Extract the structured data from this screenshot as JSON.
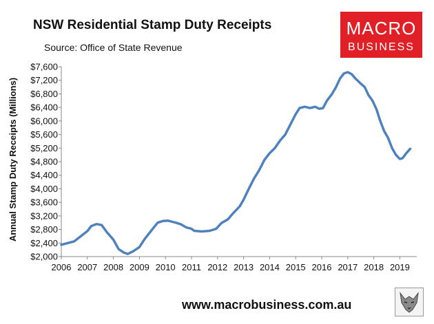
{
  "header": {
    "title": "NSW Residential Stamp Duty Receipts",
    "source": "Source: Office of State Revenue"
  },
  "logo": {
    "line1": "MACRO",
    "line2": "BUSINESS"
  },
  "footer": {
    "url": "www.macrobusiness.com.au"
  },
  "icons": {
    "badge": "wolf-badge-icon"
  },
  "colors": {
    "series": "#4f81bd",
    "logo_bg": "#e11f26"
  },
  "chart_data": {
    "type": "line",
    "title": "NSW Residential Stamp Duty Receipts",
    "ylabel": "Annual Stamp Duty Receipts (Millions)",
    "xlabel": "",
    "ylim": [
      2000,
      7600
    ],
    "xlim": [
      2006,
      2019.4
    ],
    "grid": false,
    "legend": "none",
    "y_ticks": [
      "$2,000",
      "$2,400",
      "$2,800",
      "$3,200",
      "$3,600",
      "$4,000",
      "$4,400",
      "$4,800",
      "$5,200",
      "$5,600",
      "$6,000",
      "$6,400",
      "$6,800",
      "$7,200",
      "$7,600"
    ],
    "y_tick_values": [
      2000,
      2400,
      2800,
      3200,
      3600,
      4000,
      4400,
      4800,
      5200,
      5600,
      6000,
      6400,
      6800,
      7200,
      7600
    ],
    "x_ticks": [
      "2006",
      "2007",
      "2008",
      "2009",
      "2010",
      "2011",
      "2012",
      "2013",
      "2014",
      "2015",
      "2016",
      "2017",
      "2018",
      "2019"
    ],
    "x_tick_values": [
      2006,
      2007,
      2008,
      2009,
      2010,
      2011,
      2012,
      2013,
      2014,
      2015,
      2016,
      2017,
      2018,
      2019
    ],
    "series": [
      {
        "values": [
          [
            2006.0,
            2350
          ],
          [
            2006.25,
            2400
          ],
          [
            2006.5,
            2450
          ],
          [
            2006.75,
            2600
          ],
          [
            2007.0,
            2750
          ],
          [
            2007.15,
            2900
          ],
          [
            2007.35,
            2960
          ],
          [
            2007.55,
            2930
          ],
          [
            2007.75,
            2720
          ],
          [
            2008.0,
            2500
          ],
          [
            2008.2,
            2220
          ],
          [
            2008.4,
            2120
          ],
          [
            2008.55,
            2080
          ],
          [
            2008.75,
            2150
          ],
          [
            2009.0,
            2280
          ],
          [
            2009.2,
            2520
          ],
          [
            2009.45,
            2760
          ],
          [
            2009.7,
            3000
          ],
          [
            2009.9,
            3050
          ],
          [
            2010.1,
            3060
          ],
          [
            2010.4,
            3000
          ],
          [
            2010.6,
            2950
          ],
          [
            2010.8,
            2860
          ],
          [
            2011.0,
            2820
          ],
          [
            2011.1,
            2760
          ],
          [
            2011.4,
            2740
          ],
          [
            2011.7,
            2760
          ],
          [
            2011.95,
            2820
          ],
          [
            2012.15,
            2990
          ],
          [
            2012.4,
            3100
          ],
          [
            2012.6,
            3280
          ],
          [
            2012.85,
            3480
          ],
          [
            2013.0,
            3680
          ],
          [
            2013.2,
            4000
          ],
          [
            2013.4,
            4300
          ],
          [
            2013.6,
            4550
          ],
          [
            2013.8,
            4850
          ],
          [
            2014.0,
            5050
          ],
          [
            2014.2,
            5200
          ],
          [
            2014.4,
            5420
          ],
          [
            2014.6,
            5600
          ],
          [
            2014.8,
            5900
          ],
          [
            2015.0,
            6200
          ],
          [
            2015.15,
            6380
          ],
          [
            2015.35,
            6420
          ],
          [
            2015.55,
            6380
          ],
          [
            2015.75,
            6420
          ],
          [
            2015.9,
            6360
          ],
          [
            2016.05,
            6380
          ],
          [
            2016.2,
            6600
          ],
          [
            2016.4,
            6800
          ],
          [
            2016.55,
            7000
          ],
          [
            2016.7,
            7250
          ],
          [
            2016.85,
            7400
          ],
          [
            2017.0,
            7440
          ],
          [
            2017.15,
            7380
          ],
          [
            2017.3,
            7250
          ],
          [
            2017.5,
            7100
          ],
          [
            2017.65,
            7000
          ],
          [
            2017.8,
            6760
          ],
          [
            2017.95,
            6600
          ],
          [
            2018.1,
            6350
          ],
          [
            2018.25,
            6000
          ],
          [
            2018.4,
            5700
          ],
          [
            2018.55,
            5500
          ],
          [
            2018.7,
            5200
          ],
          [
            2018.85,
            5000
          ],
          [
            2019.0,
            4880
          ],
          [
            2019.1,
            4900
          ],
          [
            2019.25,
            5050
          ],
          [
            2019.4,
            5180
          ]
        ]
      }
    ]
  }
}
